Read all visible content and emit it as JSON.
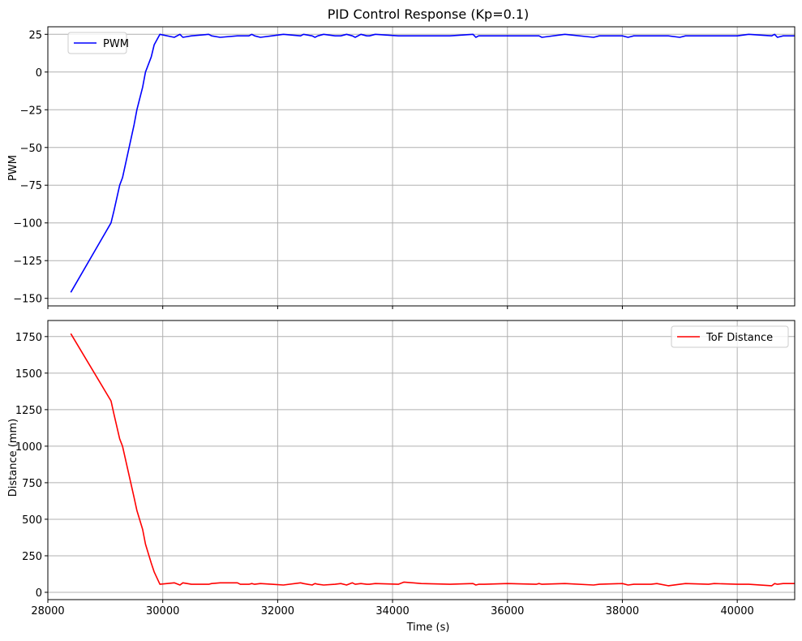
{
  "chart_data": [
    {
      "type": "line",
      "title": "PID Control Response (Kp=0.1)",
      "xlabel": "",
      "ylabel": "PWM",
      "xlim": [
        28000,
        41000
      ],
      "ylim": [
        -155,
        30
      ],
      "xticks": [
        28000,
        30000,
        32000,
        34000,
        36000,
        38000,
        40000
      ],
      "xtick_labels_visible": false,
      "yticks": [
        -150,
        -125,
        -100,
        -75,
        -50,
        -25,
        0,
        25
      ],
      "ytick_labels": [
        "−150",
        "−125",
        "−100",
        "−75",
        "−50",
        "−25",
        "0",
        "25"
      ],
      "grid": true,
      "legend": "upper-left",
      "series": [
        {
          "name": "PWM",
          "color": "#0000ff",
          "x": [
            28400,
            29100,
            29150,
            29250,
            29300,
            29500,
            29550,
            29650,
            29700,
            29800,
            29850,
            29950,
            30200,
            30300,
            30350,
            30500,
            30800,
            30850,
            31000,
            31300,
            31350,
            31500,
            31550,
            31600,
            31700,
            31900,
            32100,
            32400,
            32450,
            32600,
            32650,
            32700,
            32800,
            33000,
            33100,
            33200,
            33300,
            33350,
            33450,
            33550,
            33600,
            33700,
            34100,
            34200,
            34500,
            35000,
            35400,
            35450,
            35500,
            35600,
            36000,
            36500,
            36550,
            36600,
            37000,
            37500,
            37600,
            38000,
            38100,
            38200,
            38500,
            38600,
            38800,
            39000,
            39100,
            39500,
            39600,
            40000,
            40200,
            40600,
            40650,
            40700,
            40800,
            41000
          ],
          "y": [
            -146,
            -100,
            -92,
            -75,
            -70,
            -35,
            -25,
            -10,
            0,
            10,
            18,
            25,
            23,
            25,
            23,
            24,
            25,
            24,
            23,
            24,
            24,
            24,
            25,
            24,
            23,
            24,
            25,
            24,
            25,
            24,
            23,
            24,
            25,
            24,
            24,
            25,
            24,
            23,
            25,
            24,
            24,
            25,
            24,
            24,
            24,
            24,
            25,
            23,
            24,
            24,
            24,
            24,
            24,
            23,
            25,
            23,
            24,
            24,
            23,
            24,
            24,
            24,
            24,
            23,
            24,
            24,
            24,
            24,
            25,
            24,
            25,
            23,
            24,
            24
          ]
        }
      ]
    },
    {
      "type": "line",
      "title": "",
      "xlabel": "Time (s)",
      "ylabel": "Distance (mm)",
      "xlim": [
        28000,
        41000
      ],
      "ylim": [
        -50,
        1860
      ],
      "xticks": [
        28000,
        30000,
        32000,
        34000,
        36000,
        38000,
        40000
      ],
      "xtick_labels": [
        "28000",
        "30000",
        "32000",
        "34000",
        "36000",
        "38000",
        "40000"
      ],
      "yticks": [
        0,
        250,
        500,
        750,
        1000,
        1250,
        1500,
        1750
      ],
      "ytick_labels": [
        "0",
        "250",
        "500",
        "750",
        "1000",
        "1250",
        "1500",
        "1750"
      ],
      "grid": true,
      "legend": "upper-right",
      "series": [
        {
          "name": "ToF Distance",
          "color": "#ff0000",
          "x": [
            28400,
            29100,
            29150,
            29250,
            29300,
            29500,
            29550,
            29650,
            29700,
            29800,
            29850,
            29950,
            30200,
            30300,
            30350,
            30500,
            30800,
            30850,
            31000,
            31300,
            31350,
            31500,
            31550,
            31600,
            31700,
            31900,
            32100,
            32400,
            32450,
            32600,
            32650,
            32700,
            32800,
            33000,
            33100,
            33200,
            33300,
            33350,
            33450,
            33550,
            33600,
            33700,
            34100,
            34200,
            34500,
            35000,
            35400,
            35450,
            35500,
            35600,
            36000,
            36500,
            36550,
            36600,
            37000,
            37500,
            37600,
            38000,
            38100,
            38200,
            38500,
            38600,
            38800,
            39000,
            39100,
            39500,
            39600,
            40000,
            40200,
            40600,
            40650,
            40700,
            40800,
            41000
          ],
          "y": [
            1770,
            1310,
            1220,
            1050,
            1000,
            650,
            560,
            430,
            330,
            200,
            140,
            55,
            65,
            50,
            65,
            55,
            55,
            60,
            65,
            65,
            55,
            55,
            60,
            55,
            60,
            55,
            50,
            65,
            60,
            50,
            60,
            55,
            50,
            55,
            60,
            50,
            65,
            55,
            60,
            55,
            55,
            60,
            55,
            70,
            60,
            55,
            60,
            50,
            55,
            55,
            60,
            55,
            60,
            55,
            60,
            50,
            55,
            60,
            50,
            55,
            55,
            60,
            45,
            55,
            60,
            55,
            60,
            55,
            55,
            45,
            60,
            55,
            60,
            60
          ]
        }
      ]
    }
  ]
}
